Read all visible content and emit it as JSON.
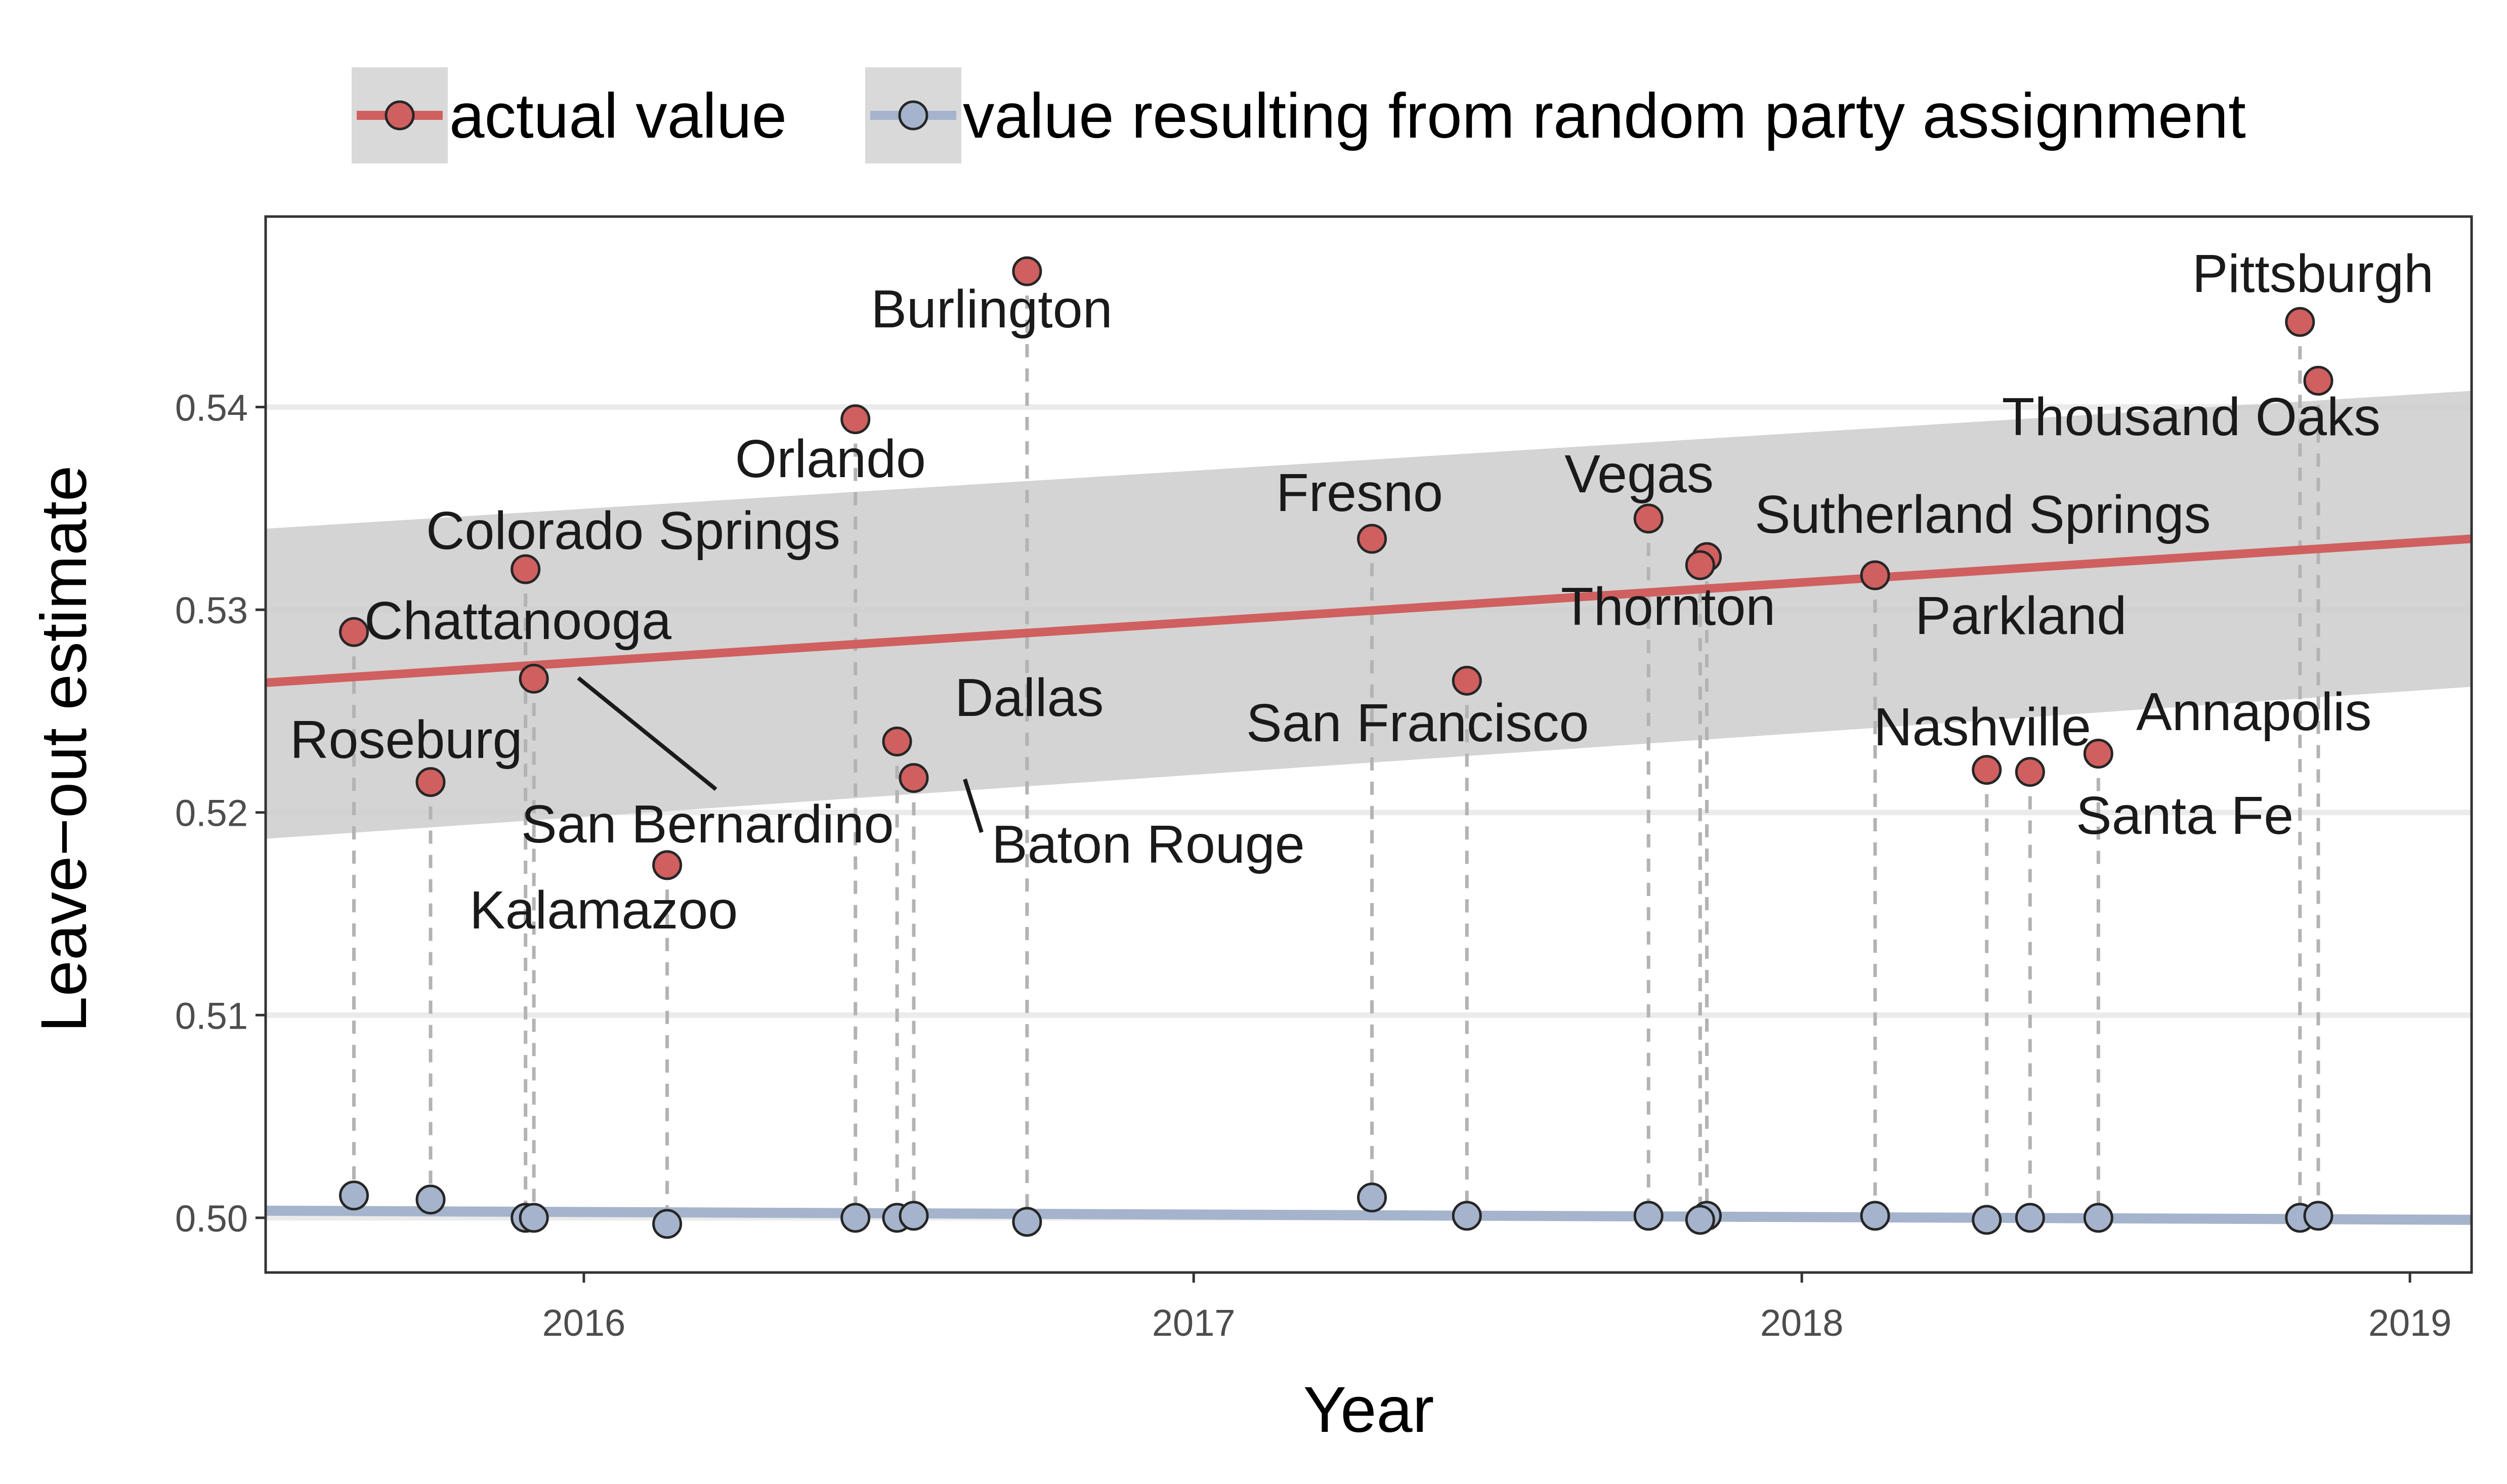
{
  "chart_data": {
    "type": "scatter",
    "xlabel": "Year",
    "ylabel": "Leave−out estimate",
    "xlim": [
      "2015-06-24",
      "2019-02-07"
    ],
    "ylim": [
      0.4973,
      0.5494
    ],
    "x_ticks": [
      "2016",
      "2017",
      "2018",
      "2019"
    ],
    "y_ticks": [
      "0.50",
      "0.51",
      "0.52",
      "0.53",
      "0.54"
    ],
    "grid": true,
    "legend_position": "top",
    "series": [
      {
        "name": "actual value",
        "color": "#d05f5f",
        "trend": {
          "start": [
            "2015-06-24",
            0.5264
          ],
          "end": [
            "2019-02-07",
            0.5335
          ],
          "band_lower": [
            0.5187,
            0.5262
          ],
          "band_upper": [
            0.534,
            0.5408
          ]
        },
        "points": [
          {
            "city": "Chattanooga",
            "date": "2015-08-16",
            "y": 0.5289
          },
          {
            "city": "Roseburg",
            "date": "2015-10-01",
            "y": 0.5215
          },
          {
            "city": "Colorado Springs",
            "date": "2015-11-27",
            "y": 0.532
          },
          {
            "city": "San Bernardino",
            "date": "2015-12-02",
            "y": 0.5266
          },
          {
            "city": "Kalamazoo",
            "date": "2016-02-20",
            "y": 0.5174
          },
          {
            "city": "Orlando",
            "date": "2016-06-12",
            "y": 0.5394
          },
          {
            "city": "Dallas",
            "date": "2016-07-07",
            "y": 0.5235
          },
          {
            "city": "Baton Rouge",
            "date": "2016-07-17",
            "y": 0.5217
          },
          {
            "city": "Burlington",
            "date": "2016-09-23",
            "y": 0.5467
          },
          {
            "city": "Fresno",
            "date": "2017-04-18",
            "y": 0.5335
          },
          {
            "city": "San Francisco",
            "date": "2017-06-14",
            "y": 0.5265
          },
          {
            "city": "Vegas",
            "date": "2017-10-01",
            "y": 0.5345
          },
          {
            "city": "Sutherland Springs",
            "date": "2017-11-05",
            "y": 0.5326
          },
          {
            "city": "Thornton",
            "date": "2017-11-01",
            "y": 0.5322
          },
          {
            "city": "Parkland",
            "date": "2018-02-14",
            "y": 0.5317
          },
          {
            "city": "Nashville",
            "date": "2018-04-22",
            "y": 0.5221
          },
          {
            "city": "Santa Fe",
            "date": "2018-05-18",
            "y": 0.522
          },
          {
            "city": "Annapolis",
            "date": "2018-06-28",
            "y": 0.5229
          },
          {
            "city": "Pittsburgh",
            "date": "2018-10-27",
            "y": 0.5442
          },
          {
            "city": "Thousand Oaks",
            "date": "2018-11-07",
            "y": 0.5413
          }
        ]
      },
      {
        "name": "value resulting from random party assignment",
        "color": "#a5b4cc",
        "trend": {
          "start": [
            "2015-06-24",
            0.50035
          ],
          "end": [
            "2019-02-07",
            0.4999
          ]
        },
        "points": [
          {
            "city": "Chattanooga",
            "date": "2015-08-16",
            "y": 0.5011
          },
          {
            "city": "Roseburg",
            "date": "2015-10-01",
            "y": 0.5009
          },
          {
            "city": "Colorado Springs",
            "date": "2015-11-27",
            "y": 0.5
          },
          {
            "city": "San Bernardino",
            "date": "2015-12-02",
            "y": 0.5
          },
          {
            "city": "Kalamazoo",
            "date": "2016-02-20",
            "y": 0.4997
          },
          {
            "city": "Orlando",
            "date": "2016-06-12",
            "y": 0.5
          },
          {
            "city": "Dallas",
            "date": "2016-07-07",
            "y": 0.5
          },
          {
            "city": "Baton Rouge",
            "date": "2016-07-17",
            "y": 0.5001
          },
          {
            "city": "Burlington",
            "date": "2016-09-23",
            "y": 0.4998
          },
          {
            "city": "Fresno",
            "date": "2017-04-18",
            "y": 0.501
          },
          {
            "city": "San Francisco",
            "date": "2017-06-14",
            "y": 0.5001
          },
          {
            "city": "Vegas",
            "date": "2017-10-01",
            "y": 0.5001
          },
          {
            "city": "Sutherland Springs",
            "date": "2017-11-05",
            "y": 0.5001
          },
          {
            "city": "Thornton",
            "date": "2017-11-01",
            "y": 0.4999
          },
          {
            "city": "Parkland",
            "date": "2018-02-14",
            "y": 0.5001
          },
          {
            "city": "Nashville",
            "date": "2018-04-22",
            "y": 0.4999
          },
          {
            "city": "Santa Fe",
            "date": "2018-05-18",
            "y": 0.5
          },
          {
            "city": "Annapolis",
            "date": "2018-06-28",
            "y": 0.5
          },
          {
            "city": "Pittsburgh",
            "date": "2018-10-27",
            "y": 0.5
          },
          {
            "city": "Thousand Oaks",
            "date": "2018-11-07",
            "y": 0.5001
          }
        ]
      }
    ]
  }
}
